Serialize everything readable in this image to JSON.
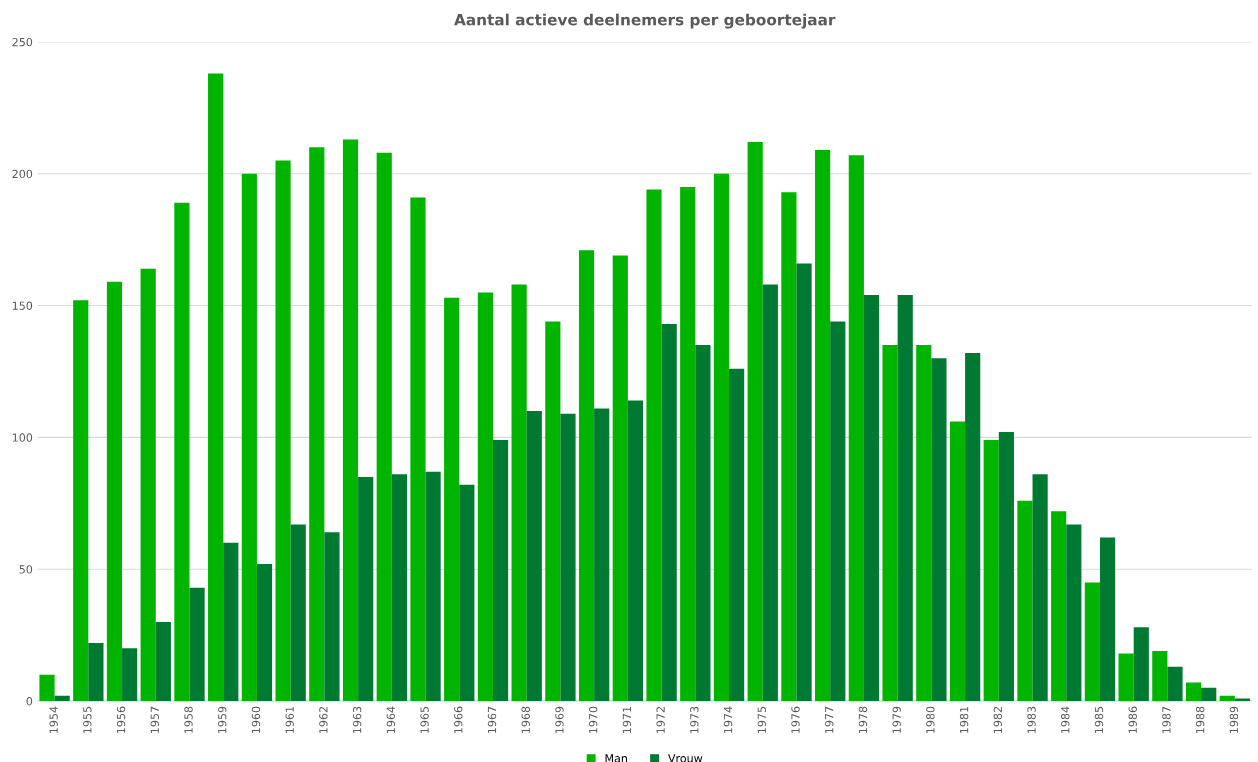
{
  "chart_data": {
    "type": "bar",
    "title": "Aantal actieve deelnemers per geboortejaar",
    "categories": [
      "1954",
      "1955",
      "1956",
      "1957",
      "1958",
      "1959",
      "1960",
      "1961",
      "1962",
      "1963",
      "1964",
      "1965",
      "1966",
      "1967",
      "1968",
      "1969",
      "1970",
      "1971",
      "1972",
      "1973",
      "1974",
      "1975",
      "1976",
      "1977",
      "1978",
      "1979",
      "1980",
      "1981",
      "1982",
      "1983",
      "1984",
      "1985",
      "1986",
      "1987",
      "1988",
      "1989"
    ],
    "series": [
      {
        "name": "Man",
        "color": "#00b400",
        "values": [
          10,
          152,
          159,
          164,
          189,
          238,
          200,
          205,
          210,
          213,
          208,
          191,
          153,
          155,
          158,
          144,
          171,
          169,
          194,
          195,
          200,
          212,
          193,
          209,
          207,
          135,
          135,
          106,
          99,
          76,
          72,
          45,
          18,
          19,
          7,
          2
        ]
      },
      {
        "name": "Vrouw",
        "color": "#007a33",
        "values": [
          2,
          22,
          20,
          30,
          43,
          60,
          52,
          67,
          64,
          85,
          86,
          87,
          82,
          99,
          110,
          109,
          111,
          114,
          143,
          135,
          126,
          158,
          166,
          144,
          154,
          154,
          130,
          132,
          102,
          86,
          67,
          62,
          28,
          13,
          5,
          1
        ]
      }
    ],
    "ylim": [
      0,
      250
    ],
    "yticks": [
      0,
      50,
      100,
      150,
      200,
      250
    ],
    "grid": "y",
    "legend": "bottom"
  }
}
